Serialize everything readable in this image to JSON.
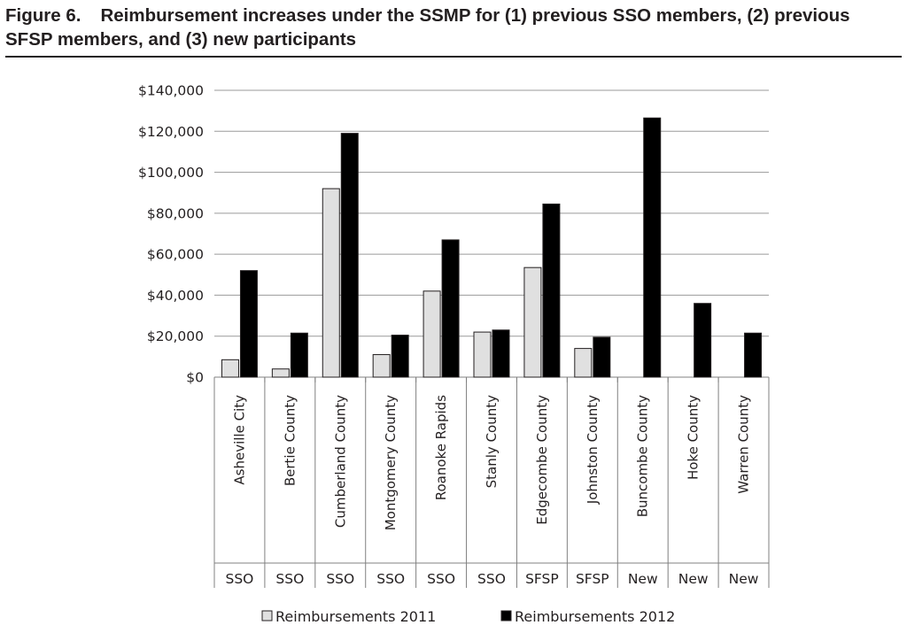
{
  "figure": {
    "number": "Figure 6.",
    "title": "Reimbursement increases under the SSMP for (1) previous SSO members, (2) previous SFSP members, and (3) new participants"
  },
  "chart_data": {
    "type": "bar",
    "categories": [
      "Asheville City",
      "Bertie County",
      "Cumberland County",
      "Montgomery County",
      "Roanoke Rapids",
      "Stanly County",
      "Edgecombe County",
      "Johnston County",
      "Buncombe County",
      "Hoke County",
      "Warren County"
    ],
    "groups": [
      "SSO",
      "SSO",
      "SSO",
      "SSO",
      "SSO",
      "SSO",
      "SFSP",
      "SFSP",
      "New",
      "New",
      "New"
    ],
    "series": [
      {
        "name": "Reimbursements  2011",
        "color": "#e0e0e0",
        "values": [
          8500,
          4000,
          92000,
          11000,
          42000,
          22000,
          53500,
          14000,
          0,
          0,
          0
        ]
      },
      {
        "name": "Reimbursements  2012",
        "color": "#000000",
        "values": [
          52000,
          21500,
          119000,
          20500,
          67000,
          23000,
          84500,
          19500,
          126500,
          36000,
          21500
        ]
      }
    ],
    "yticks": [
      "$0",
      "$20,000",
      "$40,000",
      "$60,000",
      "$80,000",
      "$100,000",
      "$120,000",
      "$140,000"
    ],
    "ylim": [
      0,
      140000
    ],
    "grid": true,
    "legend_position": "bottom"
  }
}
